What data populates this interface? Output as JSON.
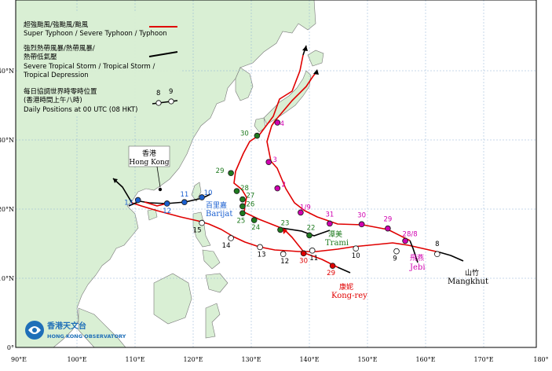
{
  "legend": {
    "typhoon_zh": "超強颱風/強颱風/颱風",
    "typhoon_en": "Super Typhoon / Severe Typhoon / Typhoon",
    "storm_zh": "強烈熱帶風暴/熱帶風暴/",
    "storm_zh2": "熱帶低氣壓",
    "storm_en": "Severe Tropical Storm / Tropical Storm /",
    "storm_en2": "Tropical Depression",
    "daily_zh": "每日協調世界時零時位置",
    "daily_zh2": "(香港時間上午八時)",
    "daily_en": "Daily Positions at 00 UTC (08 HKT)",
    "sample_left": "8",
    "sample_right": "9",
    "typhoon_color": "#e00000",
    "storm_color": "#000000"
  },
  "hongkong": {
    "zh": "香港",
    "en": "Hong Kong"
  },
  "observatory": {
    "zh": "香港天文台",
    "en": "HONG KONG OBSERVATORY"
  },
  "x_axis": [
    "90°E",
    "100°E",
    "110°E",
    "120°E",
    "130°E",
    "140°E",
    "150°E",
    "160°E",
    "170°E",
    "180°"
  ],
  "y_axis": [
    "0°",
    "10°N",
    "20°N",
    "30°N",
    "40°N"
  ],
  "storms": [
    {
      "zh": "山竹",
      "en": "Mangkhut",
      "color": "#000000",
      "days": [
        {
          "d": "8",
          "lon": 162,
          "lat": 13.5
        },
        {
          "d": "9",
          "lon": 155,
          "lat": 13.9
        },
        {
          "d": "10",
          "lon": 148,
          "lat": 14.3
        },
        {
          "d": "11",
          "lon": 140.5,
          "lat": 14.0
        },
        {
          "d": "12",
          "lon": 135.5,
          "lat": 13.5
        },
        {
          "d": "13",
          "lon": 131.5,
          "lat": 14.5
        },
        {
          "d": "14",
          "lon": 126.5,
          "lat": 15.8
        },
        {
          "d": "15",
          "lon": 121.5,
          "lat": 18.0
        }
      ]
    },
    {
      "zh": "百里嘉",
      "en": "Barijat",
      "color": "#1a5fd0",
      "days": [
        {
          "d": "10",
          "lon": 121.5,
          "lat": 21.7
        },
        {
          "d": "11",
          "lon": 118.5,
          "lat": 21.0
        },
        {
          "d": "12",
          "lon": 115.5,
          "lat": 20.8
        },
        {
          "d": "13",
          "lon": 110.5,
          "lat": 21.3
        }
      ]
    },
    {
      "zh": "潭美",
      "en": "Trami",
      "color": "#1e7a1e",
      "days": [
        {
          "d": "22",
          "lon": 140,
          "lat": 16.2
        },
        {
          "d": "23",
          "lon": 135,
          "lat": 17.0
        },
        {
          "d": "24",
          "lon": 130.5,
          "lat": 18.4
        },
        {
          "d": "25",
          "lon": 128.5,
          "lat": 19.4
        },
        {
          "d": "26",
          "lon": 128.5,
          "lat": 20.4
        },
        {
          "d": "27",
          "lon": 128.5,
          "lat": 21.4
        },
        {
          "d": "28",
          "lon": 127.5,
          "lat": 22.6
        },
        {
          "d": "29",
          "lon": 126.5,
          "lat": 25.2
        },
        {
          "d": "30",
          "lon": 131,
          "lat": 30.6
        }
      ]
    },
    {
      "zh": "飛燕",
      "en": "Jebi",
      "color": "#d000b0",
      "days": [
        {
          "d": "28/8",
          "lon": 156.5,
          "lat": 15.4
        },
        {
          "d": "29",
          "lon": 153.5,
          "lat": 17.2
        },
        {
          "d": "30",
          "lon": 149,
          "lat": 17.8
        },
        {
          "d": "31",
          "lon": 143.5,
          "lat": 17.9
        },
        {
          "d": "1/9",
          "lon": 138.5,
          "lat": 19.5
        },
        {
          "d": "2",
          "lon": 134.5,
          "lat": 23.0
        },
        {
          "d": "3",
          "lon": 133,
          "lat": 26.8
        },
        {
          "d": "4",
          "lon": 134.5,
          "lat": 32.5
        }
      ]
    },
    {
      "zh": "康妮",
      "en": "Kong-rey",
      "color": "#e00000",
      "days": [
        {
          "d": "29",
          "lon": 144,
          "lat": 11.8
        },
        {
          "d": "30",
          "lon": 139,
          "lat": 13.6
        }
      ]
    }
  ]
}
